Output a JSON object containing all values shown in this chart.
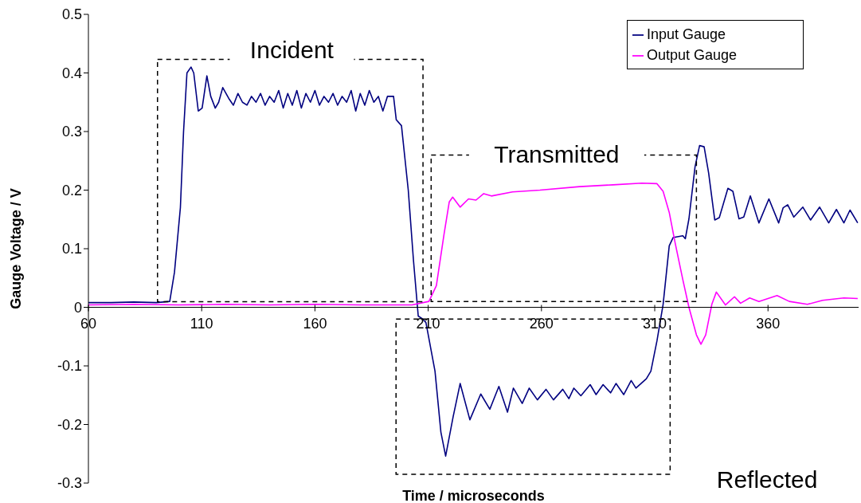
{
  "chart_data": {
    "type": "line",
    "xlabel": "Time / microseconds",
    "ylabel": "Gauge Voltage / V",
    "xlim": [
      60,
      400
    ],
    "xticks": [
      60,
      110,
      160,
      210,
      260,
      310,
      360
    ],
    "ylim": [
      -0.3,
      0.5
    ],
    "yticks": [
      -0.3,
      -0.2,
      -0.1,
      0,
      0.1,
      0.2,
      0.3,
      0.4,
      0.5
    ],
    "legend": "top right",
    "grid": false,
    "marker": "none",
    "line_style": "solid",
    "annotations": [
      "Incident",
      "Transmitted",
      "Reflected"
    ],
    "series": [
      {
        "name": "Input Gauge",
        "color": "#000080",
        "x": [
          60,
          70,
          80,
          90,
          95.9,
          98,
          100.6,
          102,
          103.5,
          105.3,
          106.5,
          108.5,
          110.2,
          112.3,
          114,
          116,
          117.5,
          119.3,
          122.2,
          124,
          126,
          128,
          130,
          132,
          134,
          136,
          138,
          140,
          142,
          144,
          146,
          148,
          150,
          152,
          154,
          156,
          158,
          160,
          162,
          164,
          166,
          168,
          170,
          172,
          174,
          176,
          178,
          180,
          182,
          184,
          186,
          188,
          190,
          192,
          194.7,
          195.9,
          198.2,
          201.2,
          203.5,
          205.6,
          207.6,
          209,
          213,
          215.6,
          217.7,
          221,
          224.1,
          228.4,
          233.2,
          237.2,
          241.2,
          245,
          247.6,
          251.5,
          254.6,
          258.2,
          262,
          265.3,
          269.4,
          272.1,
          274.3,
          277.4,
          281.5,
          284.1,
          287.2,
          290.5,
          292.9,
          296.3,
          299.6,
          301.7,
          306.3,
          308.3,
          311,
          313.7,
          316.4,
          318.1,
          322.4,
          323.5,
          325.1,
          327.8,
          329.8,
          331.8,
          333.8,
          336.5,
          338.5,
          342.3,
          344.5,
          347.2,
          349.3,
          352.2,
          356,
          360.4,
          364.7,
          366.7,
          368.7,
          371.4,
          375.4,
          378.8,
          382.8,
          386.8,
          390.2,
          393.5,
          396.2,
          399.6
        ],
        "values": [
          0.008,
          0.008,
          0.009,
          0.008,
          0.01,
          0.06,
          0.17,
          0.3,
          0.4,
          0.41,
          0.4,
          0.335,
          0.34,
          0.395,
          0.36,
          0.34,
          0.35,
          0.375,
          0.355,
          0.345,
          0.365,
          0.35,
          0.345,
          0.36,
          0.35,
          0.365,
          0.345,
          0.36,
          0.35,
          0.37,
          0.34,
          0.365,
          0.345,
          0.37,
          0.34,
          0.365,
          0.35,
          0.37,
          0.345,
          0.36,
          0.35,
          0.365,
          0.345,
          0.36,
          0.35,
          0.37,
          0.335,
          0.365,
          0.345,
          0.37,
          0.35,
          0.36,
          0.335,
          0.36,
          0.36,
          0.32,
          0.31,
          0.2,
          0.08,
          -0.015,
          -0.02,
          -0.026,
          -0.109,
          -0.213,
          -0.254,
          -0.187,
          -0.13,
          -0.192,
          -0.148,
          -0.174,
          -0.135,
          -0.179,
          -0.138,
          -0.164,
          -0.138,
          -0.158,
          -0.14,
          -0.158,
          -0.14,
          -0.156,
          -0.138,
          -0.151,
          -0.132,
          -0.149,
          -0.132,
          -0.146,
          -0.13,
          -0.149,
          -0.125,
          -0.138,
          -0.122,
          -0.109,
          -0.057,
          0.005,
          0.105,
          0.119,
          0.122,
          0.117,
          0.151,
          0.24,
          0.276,
          0.274,
          0.229,
          0.149,
          0.153,
          0.203,
          0.198,
          0.151,
          0.154,
          0.19,
          0.144,
          0.185,
          0.144,
          0.17,
          0.175,
          0.154,
          0.171,
          0.149,
          0.171,
          0.144,
          0.167,
          0.144,
          0.166,
          0.144
        ]
      },
      {
        "name": "Output Gauge",
        "color": "#ff00ff",
        "x": [
          60,
          80,
          100,
          120,
          140,
          160,
          180,
          202.9,
          210.3,
          213.6,
          217,
          219.3,
          220.8,
          224.1,
          227.8,
          231.1,
          234.5,
          237.9,
          247.2,
          259.3,
          276.8,
          291.5,
          304.3,
          311,
          313.7,
          316.4,
          319,
          322.4,
          325.1,
          328.4,
          330.4,
          332.5,
          335.2,
          337.2,
          341.2,
          345.2,
          347.9,
          351.9,
          356,
          364,
          369.4,
          377.4,
          384.1,
          393.5,
          399.6
        ],
        "values": [
          0.004,
          0.005,
          0.004,
          0.005,
          0.004,
          0.005,
          0.004,
          0.004,
          0.01,
          0.037,
          0.125,
          0.18,
          0.188,
          0.171,
          0.185,
          0.183,
          0.194,
          0.19,
          0.197,
          0.2,
          0.206,
          0.209,
          0.212,
          0.211,
          0.198,
          0.162,
          0.11,
          0.047,
          0,
          -0.047,
          -0.063,
          -0.047,
          0.005,
          0.026,
          0.004,
          0.018,
          0.007,
          0.016,
          0.01,
          0.02,
          0.01,
          0.005,
          0.012,
          0.016,
          0.015
        ]
      }
    ]
  }
}
